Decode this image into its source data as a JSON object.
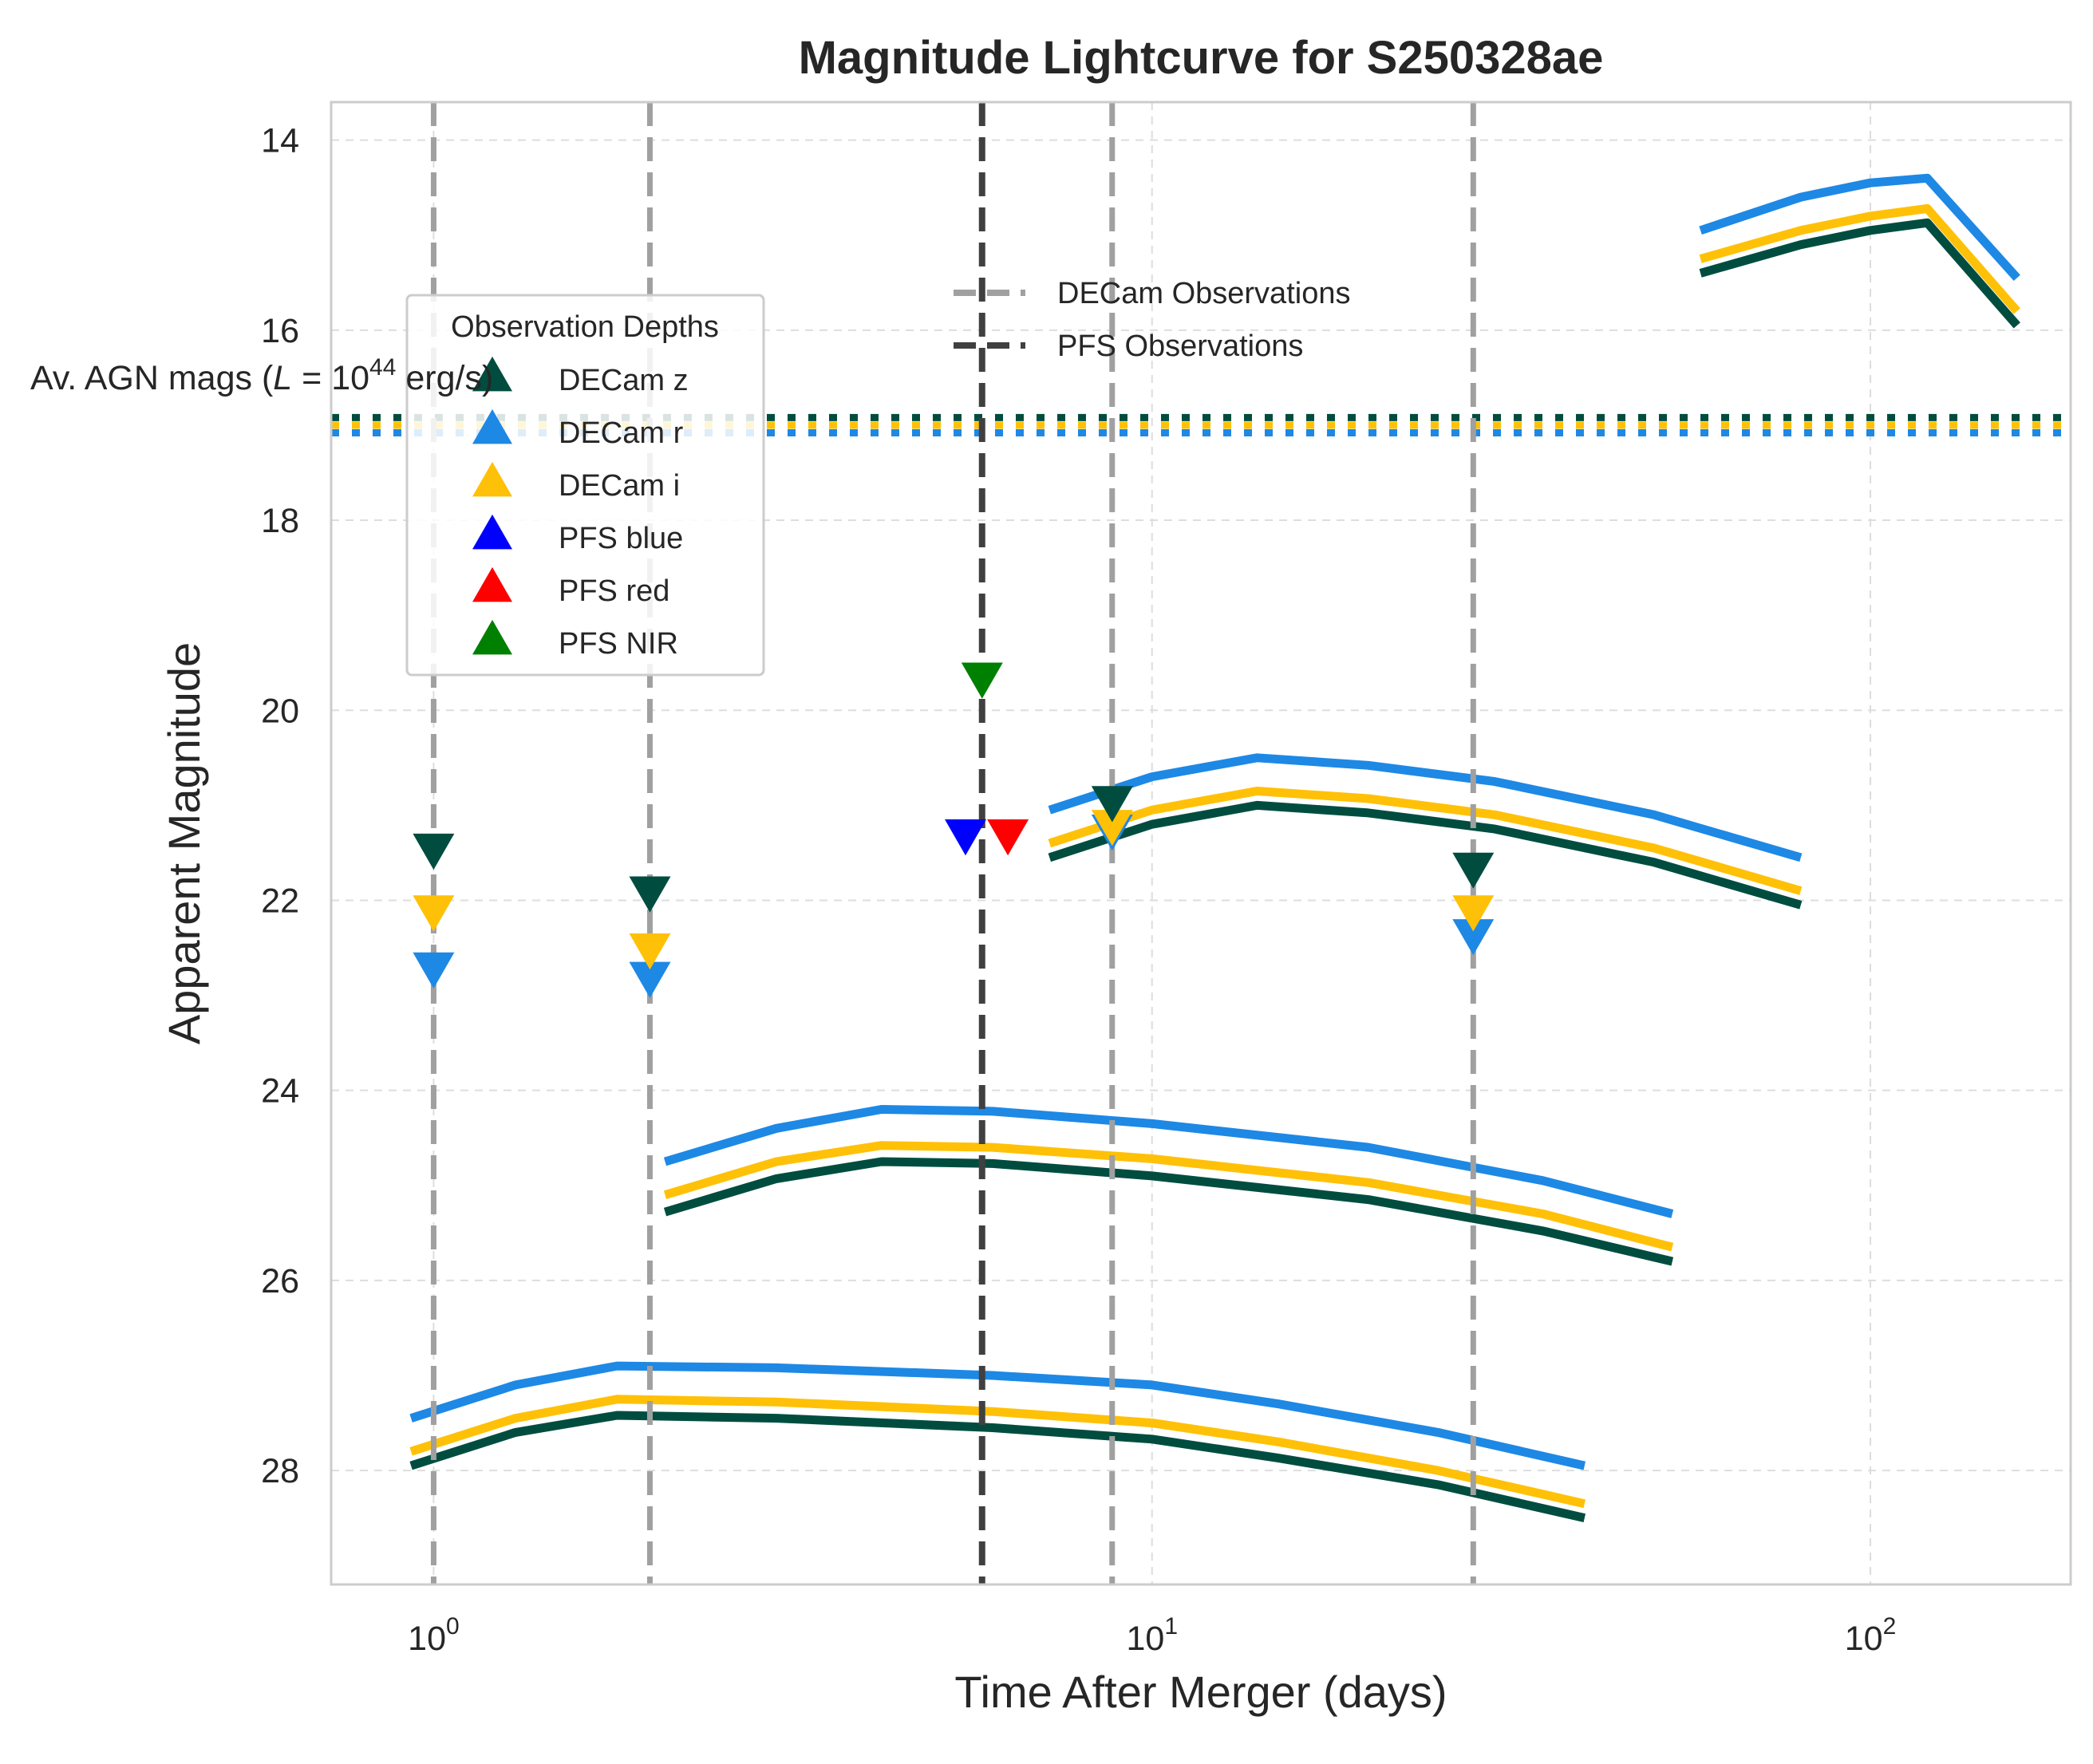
{
  "chart_data": {
    "type": "line",
    "title": "Magnitude Lightcurve for S250328ae",
    "xlabel": "Time After Merger (days)",
    "ylabel": "Apparent Magnitude",
    "x_scale": "log",
    "y_inverted": true,
    "xlim": [
      0.72,
      190
    ],
    "ylim": [
      29.2,
      13.6
    ],
    "x_ticks": [
      {
        "value": 1,
        "base": "10",
        "exp": "0"
      },
      {
        "value": 10,
        "base": "10",
        "exp": "1"
      },
      {
        "value": 100,
        "base": "10",
        "exp": "2"
      }
    ],
    "y_ticks": [
      14,
      16,
      18,
      20,
      22,
      24,
      26,
      28
    ],
    "grid": true,
    "colors": {
      "DECam z": "#004d40",
      "DECam r": "#1e88e5",
      "DECam i": "#ffc107",
      "PFS blue": "#0000ff",
      "PFS red": "#ff0000",
      "PFS NIR": "#008000",
      "DECam Observations": "#a0a0a0",
      "PFS Observations": "#404040"
    },
    "model_curves": [
      {
        "band": "DECam r",
        "x": [
          0.93,
          1.3,
          1.8,
          3,
          6,
          10,
          15,
          25,
          35,
          40
        ],
        "y": [
          27.45,
          27.1,
          26.9,
          26.92,
          27.0,
          27.1,
          27.3,
          27.6,
          27.85,
          27.95
        ]
      },
      {
        "band": "DECam i",
        "x": [
          0.93,
          1.3,
          1.8,
          3,
          6,
          10,
          15,
          25,
          35,
          40
        ],
        "y": [
          27.8,
          27.45,
          27.25,
          27.28,
          27.38,
          27.5,
          27.7,
          28.0,
          28.25,
          28.35
        ]
      },
      {
        "band": "DECam z",
        "x": [
          0.93,
          1.3,
          1.8,
          3,
          6,
          10,
          15,
          25,
          35,
          40
        ],
        "y": [
          27.95,
          27.6,
          27.42,
          27.45,
          27.55,
          27.67,
          27.87,
          28.15,
          28.4,
          28.5
        ]
      },
      {
        "band": "DECam r",
        "x": [
          2.1,
          3,
          4.2,
          6,
          10,
          20,
          35,
          53
        ],
        "y": [
          24.75,
          24.4,
          24.2,
          24.22,
          24.35,
          24.6,
          24.95,
          25.3
        ]
      },
      {
        "band": "DECam i",
        "x": [
          2.1,
          3,
          4.2,
          6,
          10,
          20,
          35,
          53
        ],
        "y": [
          25.1,
          24.75,
          24.58,
          24.6,
          24.72,
          24.97,
          25.3,
          25.65
        ]
      },
      {
        "band": "DECam z",
        "x": [
          2.1,
          3,
          4.2,
          6,
          10,
          20,
          35,
          53
        ],
        "y": [
          25.28,
          24.93,
          24.75,
          24.77,
          24.9,
          25.15,
          25.48,
          25.8
        ]
      },
      {
        "band": "DECam r",
        "x": [
          7.2,
          10,
          14,
          20,
          30,
          50,
          80
        ],
        "y": [
          21.05,
          20.7,
          20.5,
          20.58,
          20.75,
          21.1,
          21.55
        ]
      },
      {
        "band": "DECam i",
        "x": [
          7.2,
          10,
          14,
          20,
          30,
          50,
          80
        ],
        "y": [
          21.4,
          21.05,
          20.85,
          20.93,
          21.1,
          21.45,
          21.9
        ]
      },
      {
        "band": "DECam z",
        "x": [
          7.2,
          10,
          14,
          20,
          30,
          50,
          80
        ],
        "y": [
          21.55,
          21.2,
          21.0,
          21.08,
          21.25,
          21.6,
          22.05
        ]
      },
      {
        "band": "DECam r",
        "x": [
          58,
          80,
          100,
          120,
          160
        ],
        "y": [
          14.95,
          14.6,
          14.45,
          14.4,
          15.45
        ]
      },
      {
        "band": "DECam i",
        "x": [
          58,
          80,
          100,
          120,
          160
        ],
        "y": [
          15.25,
          14.95,
          14.8,
          14.72,
          15.8
        ]
      },
      {
        "band": "DECam z",
        "x": [
          58,
          80,
          100,
          120,
          160
        ],
        "y": [
          15.4,
          15.1,
          14.95,
          14.87,
          15.95
        ]
      }
    ],
    "agn_lines": [
      {
        "band": "DECam z",
        "y": 16.92
      },
      {
        "band": "DECam i",
        "y": 17.0
      },
      {
        "band": "DECam r",
        "y": 17.08
      }
    ],
    "agn_label": {
      "prefix": "Av. AGN mags (",
      "var": "L",
      "mid": " = 10",
      "exp": "44",
      "suffix": " erg/s)"
    },
    "observation_lines": [
      {
        "kind": "DECam Observations",
        "x": 1.0
      },
      {
        "kind": "DECam Observations",
        "x": 2.0
      },
      {
        "kind": "PFS Observations",
        "x": 5.8
      },
      {
        "kind": "DECam Observations",
        "x": 8.8
      },
      {
        "kind": "DECam Observations",
        "x": 28.0
      }
    ],
    "depth_markers": [
      {
        "band": "DECam r",
        "x": 1.0,
        "y": 22.7
      },
      {
        "band": "DECam i",
        "x": 1.0,
        "y": 22.1
      },
      {
        "band": "DECam z",
        "x": 1.0,
        "y": 21.45
      },
      {
        "band": "DECam r",
        "x": 2.0,
        "y": 22.8
      },
      {
        "band": "DECam i",
        "x": 2.0,
        "y": 22.5
      },
      {
        "band": "DECam z",
        "x": 2.0,
        "y": 21.9
      },
      {
        "band": "PFS NIR",
        "x": 5.8,
        "y": 19.65
      },
      {
        "band": "PFS blue",
        "x": 5.5,
        "y": 21.3
      },
      {
        "band": "PFS red",
        "x": 6.3,
        "y": 21.3
      },
      {
        "band": "DECam r",
        "x": 8.8,
        "y": 21.25
      },
      {
        "band": "DECam i",
        "x": 8.8,
        "y": 21.2
      },
      {
        "band": "DECam z",
        "x": 8.8,
        "y": 20.95
      },
      {
        "band": "DECam r",
        "x": 28.0,
        "y": 22.35
      },
      {
        "band": "DECam i",
        "x": 28.0,
        "y": 22.1
      },
      {
        "band": "DECam z",
        "x": 28.0,
        "y": 21.65
      }
    ],
    "legend_lines": {
      "placement": "upper-center",
      "items": [
        "DECam Observations",
        "PFS Observations"
      ]
    },
    "legend_depths": {
      "title": "Observation Depths",
      "placement": "upper-left",
      "items": [
        "DECam z",
        "DECam r",
        "DECam i",
        "PFS blue",
        "PFS red",
        "PFS NIR"
      ]
    }
  }
}
